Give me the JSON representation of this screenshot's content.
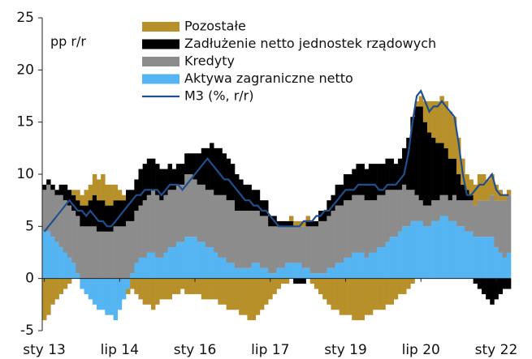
{
  "chart_data": {
    "type": "bar",
    "stacked": true,
    "ylabel": "pp r/r",
    "ylim": [
      -5,
      25
    ],
    "yticks": [
      -5,
      0,
      5,
      10,
      15,
      20,
      25
    ],
    "grid": false,
    "legend": "upper left",
    "categories": [
      "sty 13",
      null,
      null,
      null,
      null,
      null,
      null,
      null,
      null,
      null,
      null,
      null,
      null,
      null,
      null,
      null,
      null,
      null,
      "lip 14",
      null,
      null,
      null,
      null,
      null,
      null,
      null,
      null,
      null,
      null,
      null,
      null,
      null,
      null,
      null,
      null,
      null,
      "sty 16",
      null,
      null,
      null,
      null,
      null,
      null,
      null,
      null,
      null,
      null,
      null,
      null,
      null,
      null,
      null,
      null,
      null,
      "lip 17",
      null,
      null,
      null,
      null,
      null,
      null,
      null,
      null,
      null,
      null,
      null,
      null,
      null,
      null,
      null,
      null,
      null,
      "sty 19",
      null,
      null,
      null,
      null,
      null,
      null,
      null,
      null,
      null,
      null,
      null,
      null,
      null,
      null,
      null,
      null,
      null,
      "lip 20",
      null,
      null,
      null,
      null,
      null,
      null,
      null,
      null,
      null,
      null,
      null,
      null,
      null,
      null,
      null,
      null,
      null,
      "sty 22",
      null,
      null,
      null
    ],
    "series": [
      {
        "name": "Pozostałe",
        "color": "#b8902a",
        "values": [
          -4.0,
          -3.5,
          -2.5,
          -2.0,
          -1.5,
          -1.0,
          -0.5,
          0.5,
          1.0,
          1.0,
          1.5,
          1.5,
          2.0,
          2.0,
          2.5,
          2.0,
          2.0,
          1.5,
          1.0,
          0.5,
          -0.5,
          -1.0,
          -1.5,
          -2.0,
          -2.5,
          -2.5,
          -3.0,
          -2.5,
          -2.0,
          -2.0,
          -2.0,
          -1.5,
          -1.5,
          -1.0,
          -1.5,
          -1.5,
          -1.5,
          -1.5,
          -2.0,
          -2.0,
          -2.0,
          -2.0,
          -2.5,
          -2.5,
          -3.0,
          -3.0,
          -3.0,
          -3.5,
          -3.5,
          -4.0,
          -4.0,
          -3.5,
          -3.0,
          -2.5,
          -2.0,
          -1.5,
          -1.0,
          -0.5,
          -0.5,
          0.5,
          0.5,
          0.5,
          0.5,
          0.5,
          -0.5,
          -1.0,
          -1.5,
          -2.0,
          -2.5,
          -3.0,
          -3.0,
          -3.5,
          -3.5,
          -3.5,
          -4.0,
          -4.0,
          -4.0,
          -3.5,
          -3.5,
          -3.0,
          -3.0,
          -3.0,
          -2.5,
          -2.5,
          -2.0,
          -1.5,
          -1.5,
          -1.0,
          -0.5,
          0.5,
          1.0,
          2.0,
          3.0,
          3.5,
          4.0,
          4.5,
          4.5,
          4.5,
          4.0,
          3.5,
          2.5,
          1.5,
          1.5,
          2.0,
          2.5,
          2.5,
          2.0,
          2.0,
          1.5,
          1.0,
          0.5,
          0.5
        ]
      },
      {
        "name": "Zadłużenie netto jednostek rządowych",
        "color": "#000000",
        "values": [
          0.5,
          0.5,
          0.5,
          0.5,
          1.0,
          1.5,
          1.5,
          1.5,
          1.5,
          2.0,
          2.0,
          2.5,
          3.0,
          3.0,
          3.0,
          2.5,
          2.5,
          2.5,
          2.5,
          2.5,
          3.0,
          3.0,
          3.0,
          3.5,
          3.5,
          3.5,
          3.0,
          3.0,
          3.0,
          2.5,
          2.5,
          2.0,
          2.0,
          2.0,
          2.0,
          2.0,
          2.5,
          3.0,
          3.5,
          4.0,
          4.5,
          4.5,
          4.5,
          4.0,
          4.0,
          3.5,
          3.5,
          3.0,
          2.5,
          2.5,
          2.0,
          2.0,
          1.5,
          1.5,
          1.0,
          1.0,
          0.5,
          0.5,
          0.5,
          0.5,
          -0.5,
          -0.5,
          -0.5,
          0.5,
          0.5,
          0.5,
          1.0,
          1.0,
          1.5,
          1.5,
          2.0,
          2.0,
          2.5,
          2.5,
          2.5,
          3.0,
          3.0,
          3.0,
          3.5,
          3.5,
          3.0,
          3.0,
          3.0,
          3.0,
          2.5,
          3.0,
          3.5,
          5.0,
          7.0,
          8.5,
          9.0,
          8.0,
          7.0,
          6.0,
          5.5,
          5.0,
          4.5,
          4.0,
          3.5,
          2.5,
          1.5,
          1.0,
          0.5,
          -0.5,
          -1.0,
          -1.5,
          -2.0,
          -2.5,
          -2.0,
          -1.5,
          -1.0,
          -1.0
        ]
      },
      {
        "name": "Kredyty",
        "color": "#8c8c8c",
        "values": [
          4.0,
          4.5,
          4.5,
          4.5,
          5.0,
          5.0,
          5.0,
          5.0,
          5.5,
          5.0,
          5.0,
          5.0,
          5.0,
          4.5,
          4.5,
          4.5,
          4.5,
          5.0,
          5.0,
          5.0,
          5.5,
          5.0,
          5.0,
          5.0,
          5.5,
          5.5,
          6.0,
          6.0,
          5.5,
          5.5,
          5.5,
          5.5,
          5.5,
          5.5,
          6.0,
          6.0,
          5.5,
          5.5,
          5.5,
          5.5,
          5.5,
          5.5,
          6.0,
          6.0,
          6.0,
          6.0,
          5.5,
          5.5,
          5.5,
          5.5,
          5.0,
          5.0,
          5.0,
          5.0,
          4.5,
          4.5,
          4.0,
          4.0,
          3.5,
          3.5,
          3.5,
          3.5,
          4.0,
          4.0,
          4.5,
          4.5,
          5.0,
          5.0,
          5.0,
          5.5,
          5.5,
          5.5,
          5.5,
          5.5,
          5.5,
          5.5,
          5.5,
          5.5,
          5.0,
          5.0,
          5.0,
          5.0,
          5.0,
          4.5,
          4.5,
          4.0,
          4.0,
          3.5,
          3.0,
          2.5,
          2.0,
          2.0,
          2.0,
          2.0,
          2.0,
          2.0,
          2.0,
          2.0,
          2.5,
          2.5,
          2.5,
          3.0,
          3.0,
          3.0,
          3.5,
          3.5,
          3.5,
          4.0,
          4.5,
          5.0,
          5.5,
          5.5
        ]
      },
      {
        "name": "Aktywa zagraniczne netto",
        "color": "#55b4f2",
        "values": [
          4.5,
          4.5,
          4.0,
          3.5,
          3.0,
          2.5,
          2.0,
          1.5,
          0.5,
          -1.0,
          -1.5,
          -2.0,
          -2.5,
          -3.0,
          -3.0,
          -3.5,
          -3.5,
          -4.0,
          -3.0,
          -2.0,
          -1.0,
          0.5,
          1.5,
          2.0,
          2.0,
          2.5,
          2.5,
          2.0,
          2.0,
          2.5,
          3.0,
          3.0,
          3.5,
          3.5,
          4.0,
          4.0,
          4.0,
          3.5,
          3.5,
          3.0,
          3.0,
          2.5,
          2.0,
          2.0,
          1.5,
          1.5,
          1.0,
          1.0,
          1.0,
          1.0,
          1.5,
          1.5,
          1.0,
          1.0,
          0.5,
          0.5,
          1.0,
          1.0,
          1.5,
          1.5,
          1.5,
          1.5,
          1.0,
          1.0,
          0.5,
          0.5,
          0.5,
          0.5,
          1.0,
          1.0,
          1.5,
          1.5,
          2.0,
          2.0,
          2.5,
          2.5,
          2.5,
          2.0,
          2.5,
          2.5,
          3.0,
          3.0,
          3.5,
          4.0,
          4.0,
          4.5,
          5.0,
          5.0,
          5.5,
          5.5,
          5.5,
          5.0,
          5.0,
          5.5,
          5.5,
          6.0,
          6.0,
          5.5,
          5.5,
          5.0,
          5.0,
          4.5,
          4.5,
          4.0,
          4.0,
          4.0,
          4.0,
          4.0,
          3.0,
          2.5,
          2.0,
          2.5
        ]
      },
      {
        "name": "M3 (%, r/r)",
        "color": "#1f4f8f",
        "type": "line",
        "values": [
          4.5,
          5.0,
          5.5,
          6.0,
          6.5,
          7.0,
          7.5,
          7.0,
          6.5,
          6.5,
          6.0,
          6.5,
          6.0,
          5.5,
          5.5,
          5.0,
          5.0,
          5.5,
          6.0,
          6.5,
          7.0,
          7.5,
          8.0,
          8.0,
          8.5,
          8.5,
          8.5,
          8.5,
          8.0,
          8.5,
          9.0,
          9.0,
          9.0,
          8.5,
          9.0,
          9.5,
          10.0,
          10.5,
          11.0,
          11.5,
          11.0,
          10.5,
          10.0,
          9.5,
          9.5,
          9.0,
          8.5,
          8.0,
          7.5,
          7.5,
          7.0,
          7.0,
          6.5,
          6.5,
          6.0,
          5.5,
          5.0,
          5.0,
          5.0,
          5.0,
          5.0,
          5.0,
          5.5,
          5.5,
          5.5,
          6.0,
          6.0,
          6.5,
          6.5,
          7.0,
          7.5,
          8.0,
          8.5,
          8.5,
          8.5,
          9.0,
          9.0,
          9.0,
          9.0,
          9.0,
          8.5,
          8.5,
          9.0,
          9.0,
          9.0,
          9.5,
          10.0,
          12.0,
          15.0,
          17.5,
          18.0,
          17.0,
          16.0,
          16.5,
          16.5,
          17.0,
          16.5,
          16.0,
          15.5,
          13.0,
          10.0,
          8.0,
          8.0,
          8.5,
          9.0,
          9.0,
          9.5,
          10.0,
          8.5,
          8.0,
          8.0,
          8.0
        ]
      }
    ]
  }
}
